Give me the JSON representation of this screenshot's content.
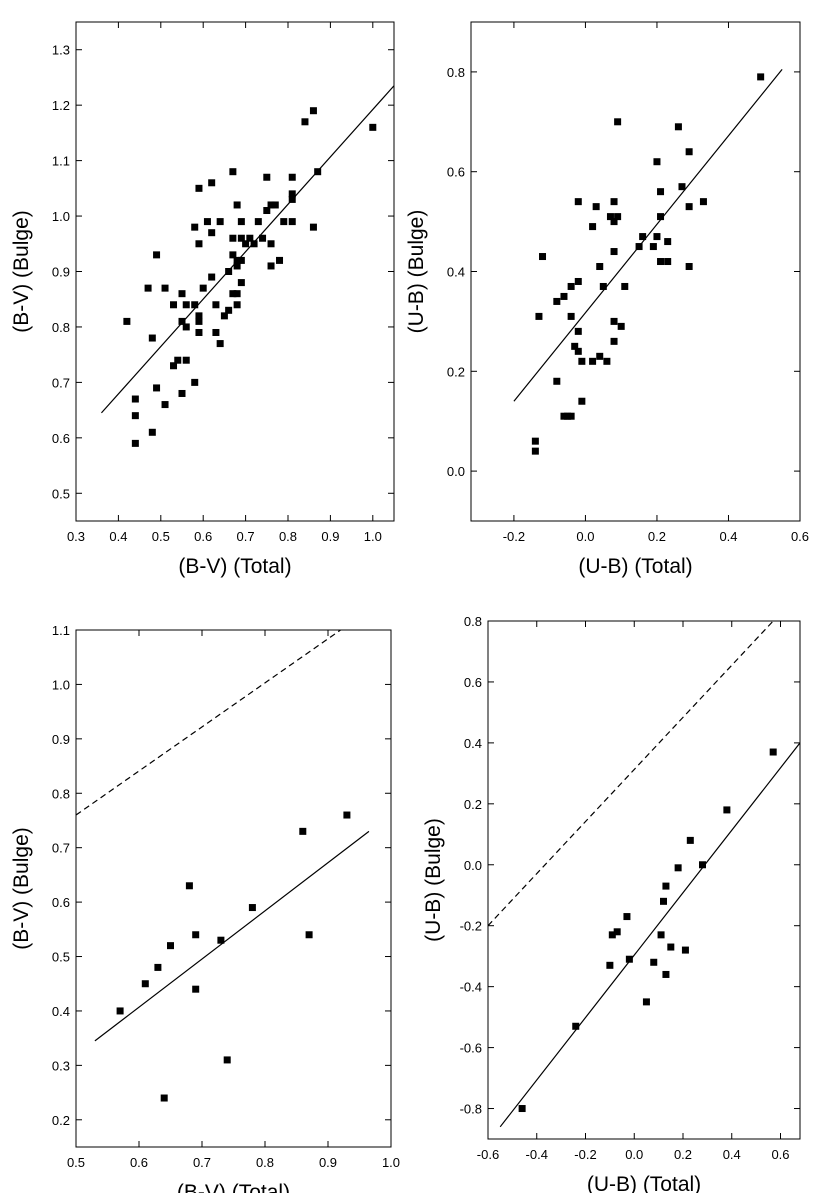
{
  "chart_data": [
    {
      "type": "scatter",
      "id": "top-left",
      "xlabel": "(B-V) (Total)",
      "ylabel": "(B-V) (Bulge)",
      "xlim": [
        0.3,
        1.05
      ],
      "ylim": [
        0.45,
        1.35
      ],
      "xticks": [
        0.3,
        0.4,
        0.5,
        0.6,
        0.7,
        0.8,
        0.9,
        1.0
      ],
      "yticks": [
        0.5,
        0.6,
        0.7,
        0.8,
        0.9,
        1.0,
        1.1,
        1.2,
        1.3
      ],
      "xtick_labels": [
        "0.3",
        "0.4",
        "0.5",
        "0.6",
        "0.7",
        "0.8",
        "0.9",
        "1.0"
      ],
      "ytick_labels": [
        "0.5",
        "0.6",
        "0.7",
        "0.8",
        "0.9",
        "1.0",
        "1.1",
        "1.2",
        "1.3"
      ],
      "points": [
        [
          0.42,
          0.81
        ],
        [
          0.44,
          0.67
        ],
        [
          0.44,
          0.64
        ],
        [
          0.44,
          0.59
        ],
        [
          0.47,
          0.87
        ],
        [
          0.48,
          0.78
        ],
        [
          0.48,
          0.61
        ],
        [
          0.49,
          0.93
        ],
        [
          0.49,
          0.69
        ],
        [
          0.51,
          0.87
        ],
        [
          0.51,
          0.66
        ],
        [
          0.53,
          0.84
        ],
        [
          0.53,
          0.73
        ],
        [
          0.54,
          0.74
        ],
        [
          0.55,
          0.86
        ],
        [
          0.55,
          0.81
        ],
        [
          0.55,
          0.68
        ],
        [
          0.56,
          0.84
        ],
        [
          0.56,
          0.8
        ],
        [
          0.56,
          0.74
        ],
        [
          0.58,
          0.98
        ],
        [
          0.58,
          0.84
        ],
        [
          0.58,
          0.7
        ],
        [
          0.59,
          1.05
        ],
        [
          0.59,
          0.95
        ],
        [
          0.59,
          0.82
        ],
        [
          0.59,
          0.81
        ],
        [
          0.59,
          0.79
        ],
        [
          0.6,
          0.87
        ],
        [
          0.61,
          0.99
        ],
        [
          0.62,
          1.06
        ],
        [
          0.62,
          0.97
        ],
        [
          0.62,
          0.89
        ],
        [
          0.63,
          0.84
        ],
        [
          0.63,
          0.79
        ],
        [
          0.64,
          0.99
        ],
        [
          0.64,
          0.77
        ],
        [
          0.65,
          0.82
        ],
        [
          0.66,
          0.9
        ],
        [
          0.66,
          0.83
        ],
        [
          0.67,
          1.08
        ],
        [
          0.67,
          0.96
        ],
        [
          0.67,
          0.93
        ],
        [
          0.67,
          0.86
        ],
        [
          0.68,
          1.02
        ],
        [
          0.68,
          0.92
        ],
        [
          0.68,
          0.91
        ],
        [
          0.68,
          0.86
        ],
        [
          0.68,
          0.84
        ],
        [
          0.69,
          0.99
        ],
        [
          0.69,
          0.96
        ],
        [
          0.69,
          0.92
        ],
        [
          0.69,
          0.88
        ],
        [
          0.7,
          0.95
        ],
        [
          0.71,
          0.96
        ],
        [
          0.72,
          0.95
        ],
        [
          0.73,
          0.99
        ],
        [
          0.74,
          0.96
        ],
        [
          0.75,
          1.07
        ],
        [
          0.75,
          1.01
        ],
        [
          0.76,
          1.02
        ],
        [
          0.76,
          0.91
        ],
        [
          0.76,
          0.95
        ],
        [
          0.77,
          1.02
        ],
        [
          0.78,
          0.92
        ],
        [
          0.79,
          0.99
        ],
        [
          0.81,
          1.07
        ],
        [
          0.81,
          1.04
        ],
        [
          0.81,
          1.03
        ],
        [
          0.81,
          0.99
        ],
        [
          0.84,
          1.17
        ],
        [
          0.86,
          1.19
        ],
        [
          0.86,
          0.98
        ],
        [
          0.87,
          1.08
        ],
        [
          1.0,
          1.16
        ]
      ],
      "fit_line": [
        [
          0.36,
          0.645
        ],
        [
          1.05,
          1.235
        ]
      ]
    },
    {
      "type": "scatter",
      "id": "top-right",
      "xlabel": "(U-B) (Total)",
      "ylabel": "(U-B) (Bulge)",
      "xlim": [
        -0.32,
        0.6
      ],
      "ylim": [
        -0.1,
        0.9
      ],
      "xticks": [
        -0.2,
        0.0,
        0.2,
        0.4,
        0.6
      ],
      "yticks": [
        0.0,
        0.2,
        0.4,
        0.6,
        0.8
      ],
      "xtick_labels": [
        "-0.2",
        "0.0",
        "0.2",
        "0.4",
        "0.6"
      ],
      "ytick_labels": [
        "0.0",
        "0.2",
        "0.4",
        "0.6",
        "0.8"
      ],
      "points": [
        [
          -0.14,
          0.06
        ],
        [
          -0.14,
          0.04
        ],
        [
          -0.13,
          0.31
        ],
        [
          -0.12,
          0.43
        ],
        [
          -0.08,
          0.34
        ],
        [
          -0.08,
          0.18
        ],
        [
          -0.06,
          0.35
        ],
        [
          -0.06,
          0.11
        ],
        [
          -0.05,
          0.11
        ],
        [
          -0.04,
          0.11
        ],
        [
          -0.04,
          0.31
        ],
        [
          -0.04,
          0.37
        ],
        [
          -0.03,
          0.25
        ],
        [
          -0.02,
          0.24
        ],
        [
          -0.02,
          0.28
        ],
        [
          -0.02,
          0.38
        ],
        [
          -0.02,
          0.54
        ],
        [
          -0.01,
          0.22
        ],
        [
          -0.01,
          0.14
        ],
        [
          0.02,
          0.49
        ],
        [
          0.02,
          0.22
        ],
        [
          0.03,
          0.53
        ],
        [
          0.04,
          0.41
        ],
        [
          0.04,
          0.23
        ],
        [
          0.05,
          0.37
        ],
        [
          0.06,
          0.22
        ],
        [
          0.07,
          0.51
        ],
        [
          0.08,
          0.54
        ],
        [
          0.08,
          0.5
        ],
        [
          0.08,
          0.44
        ],
        [
          0.08,
          0.26
        ],
        [
          0.08,
          0.3
        ],
        [
          0.09,
          0.51
        ],
        [
          0.09,
          0.7
        ],
        [
          0.1,
          0.29
        ],
        [
          0.11,
          0.37
        ],
        [
          0.15,
          0.45
        ],
        [
          0.16,
          0.47
        ],
        [
          0.19,
          0.45
        ],
        [
          0.2,
          0.47
        ],
        [
          0.2,
          0.62
        ],
        [
          0.21,
          0.56
        ],
        [
          0.21,
          0.51
        ],
        [
          0.21,
          0.42
        ],
        [
          0.23,
          0.46
        ],
        [
          0.23,
          0.42
        ],
        [
          0.26,
          0.69
        ],
        [
          0.27,
          0.57
        ],
        [
          0.29,
          0.64
        ],
        [
          0.29,
          0.53
        ],
        [
          0.29,
          0.41
        ],
        [
          0.33,
          0.54
        ],
        [
          0.49,
          0.79
        ]
      ],
      "fit_line": [
        [
          -0.2,
          0.14
        ],
        [
          0.55,
          0.805
        ]
      ]
    },
    {
      "type": "scatter",
      "id": "bottom-left",
      "xlabel": "(B-V) (Total)",
      "ylabel": "(B-V) (Bulge)",
      "xlim": [
        0.5,
        1.0
      ],
      "ylim": [
        0.15,
        1.1
      ],
      "xticks": [
        0.5,
        0.6,
        0.7,
        0.8,
        0.9,
        1.0
      ],
      "yticks": [
        0.2,
        0.3,
        0.4,
        0.5,
        0.6,
        0.7,
        0.8,
        0.9,
        1.0,
        1.1
      ],
      "xtick_labels": [
        "0.5",
        "0.6",
        "0.7",
        "0.8",
        "0.9",
        "1.0"
      ],
      "ytick_labels": [
        "0.2",
        "0.3",
        "0.4",
        "0.5",
        "0.6",
        "0.7",
        "0.8",
        "0.9",
        "1.0",
        "1.1"
      ],
      "points": [
        [
          0.57,
          0.4
        ],
        [
          0.61,
          0.45
        ],
        [
          0.63,
          0.48
        ],
        [
          0.64,
          0.24
        ],
        [
          0.65,
          0.52
        ],
        [
          0.68,
          0.63
        ],
        [
          0.69,
          0.54
        ],
        [
          0.69,
          0.44
        ],
        [
          0.73,
          0.53
        ],
        [
          0.74,
          0.31
        ],
        [
          0.78,
          0.59
        ],
        [
          0.86,
          0.73
        ],
        [
          0.87,
          0.54
        ],
        [
          0.93,
          0.76
        ]
      ],
      "fit_line": [
        [
          0.53,
          0.345
        ],
        [
          0.965,
          0.73
        ]
      ],
      "dashed_line": [
        [
          0.5,
          0.76
        ],
        [
          0.92,
          1.1
        ]
      ]
    },
    {
      "type": "scatter",
      "id": "bottom-right",
      "xlabel": "(U-B) (Total)",
      "ylabel": "(U-B) (Bulge)",
      "xlim": [
        -0.6,
        0.68
      ],
      "ylim": [
        -0.9,
        0.8
      ],
      "xticks": [
        -0.6,
        -0.4,
        -0.2,
        0.0,
        0.2,
        0.4,
        0.6
      ],
      "yticks": [
        -0.8,
        -0.6,
        -0.4,
        -0.2,
        0.0,
        0.2,
        0.4,
        0.6,
        0.8
      ],
      "xtick_labels": [
        "-0.6",
        "-0.4",
        "-0.2",
        "0.0",
        "0.2",
        "0.4",
        "0.6"
      ],
      "ytick_labels": [
        "-0.8",
        "-0.6",
        "-0.4",
        "-0.2",
        "0.0",
        "0.2",
        "0.4",
        "0.6",
        "0.8"
      ],
      "points": [
        [
          -0.46,
          -0.8
        ],
        [
          -0.24,
          -0.53
        ],
        [
          -0.1,
          -0.33
        ],
        [
          -0.09,
          -0.23
        ],
        [
          -0.07,
          -0.22
        ],
        [
          -0.03,
          -0.17
        ],
        [
          -0.02,
          -0.31
        ],
        [
          0.05,
          -0.45
        ],
        [
          0.08,
          -0.32
        ],
        [
          0.11,
          -0.23
        ],
        [
          0.12,
          -0.12
        ],
        [
          0.13,
          -0.07
        ],
        [
          0.13,
          -0.36
        ],
        [
          0.15,
          -0.27
        ],
        [
          0.18,
          -0.01
        ],
        [
          0.21,
          -0.28
        ],
        [
          0.23,
          0.08
        ],
        [
          0.28,
          0.0
        ],
        [
          0.38,
          0.18
        ],
        [
          0.57,
          0.37
        ]
      ],
      "fit_line": [
        [
          -0.55,
          -0.86
        ],
        [
          0.68,
          0.4
        ]
      ],
      "dashed_line": [
        [
          -0.6,
          -0.2
        ],
        [
          0.57,
          0.8
        ]
      ]
    }
  ]
}
